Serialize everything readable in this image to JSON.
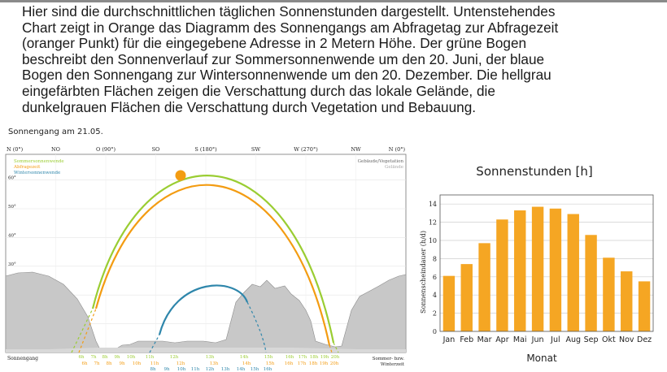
{
  "intro_lines": [
    "Hier sind die durchschnittlichen täglichen Sonnenstunden dargestellt. Untenstehendes",
    "Chart zeigt in Orange das Diagramm des Sonnengangs am Abfragetag zur Abfragezeit",
    "(oranger Punkt) für die eingegebene Adresse in 2 Metern Höhe. Der grüne Bogen",
    "beschreibt den Sonnenverlauf zur Sommersonnenwende um den 20. Juni, der blaue",
    "Bogen den Sonnengang zur Wintersonnenwende um den 20. Dezember. Die hellgrau",
    "eingefärbten Flächen zeigen die Verschattung durch das lokale Gelände, die",
    "dunkelgrauen Flächen die Verschattung durch Vegetation und Bebauung."
  ],
  "sun_chart": {
    "title": "Sonnengang am 21.05.",
    "compass_labels": [
      "N (0°)",
      "NO",
      "O (90°)",
      "SO",
      "S (180°)",
      "SW",
      "W (270°)",
      "NW",
      "N (0°)"
    ],
    "elevation_ticks": [
      "0°",
      "10°",
      "20°",
      "30°",
      "40°",
      "50°",
      "60°"
    ],
    "legend_left": [
      "Sommersonnenwende",
      "Abfragezeit",
      "Wintersonnenwende"
    ],
    "legend_right": [
      "Gebäude/Vegetation",
      "Gelände"
    ],
    "bottom_left_label": "Sonnengang",
    "bottom_right_label": [
      "Sommer- bzw.",
      "Winterzeit"
    ],
    "hours_row1": [
      "6h",
      "7h",
      "8h",
      "9h",
      "10h",
      "11h",
      "12h",
      "13h",
      "14h",
      "15h",
      "16h",
      "17h",
      "18h",
      "19h",
      "20h"
    ],
    "hours_row2": [
      "6h",
      "7h",
      "8h",
      "9h",
      "10h",
      "11h",
      "12h",
      "13h",
      "14h",
      "15h",
      "16h",
      "17h",
      "18h",
      "19h",
      "20h"
    ],
    "hours_row3": [
      "8h",
      "9h",
      "10h",
      "11h",
      "12h",
      "13h",
      "14h",
      "15h",
      "16h"
    ],
    "colors": {
      "summer": "#9acd32",
      "query": "#f39c12",
      "winter": "#2e86ab",
      "terrain": "#c8c8c8",
      "vegetation": "#d3d3d3"
    }
  },
  "chart_data": {
    "type": "bar",
    "title": "Sonnenstunden [h]",
    "xlabel": "Monat",
    "ylabel": "Sonnenscheindauer (h/d)",
    "categories": [
      "Jan",
      "Feb",
      "Mar",
      "Apr",
      "Mai",
      "Jun",
      "Jul",
      "Aug",
      "Sep",
      "Okt",
      "Nov",
      "Dez"
    ],
    "values": [
      6.1,
      7.4,
      9.7,
      12.3,
      13.3,
      13.7,
      13.5,
      12.9,
      10.6,
      8.1,
      6.6,
      5.5
    ],
    "ylim": [
      0,
      15
    ],
    "yticks": [
      0,
      2,
      4,
      6,
      8,
      10,
      12,
      14
    ],
    "grid": true,
    "color": "#f5a623"
  }
}
